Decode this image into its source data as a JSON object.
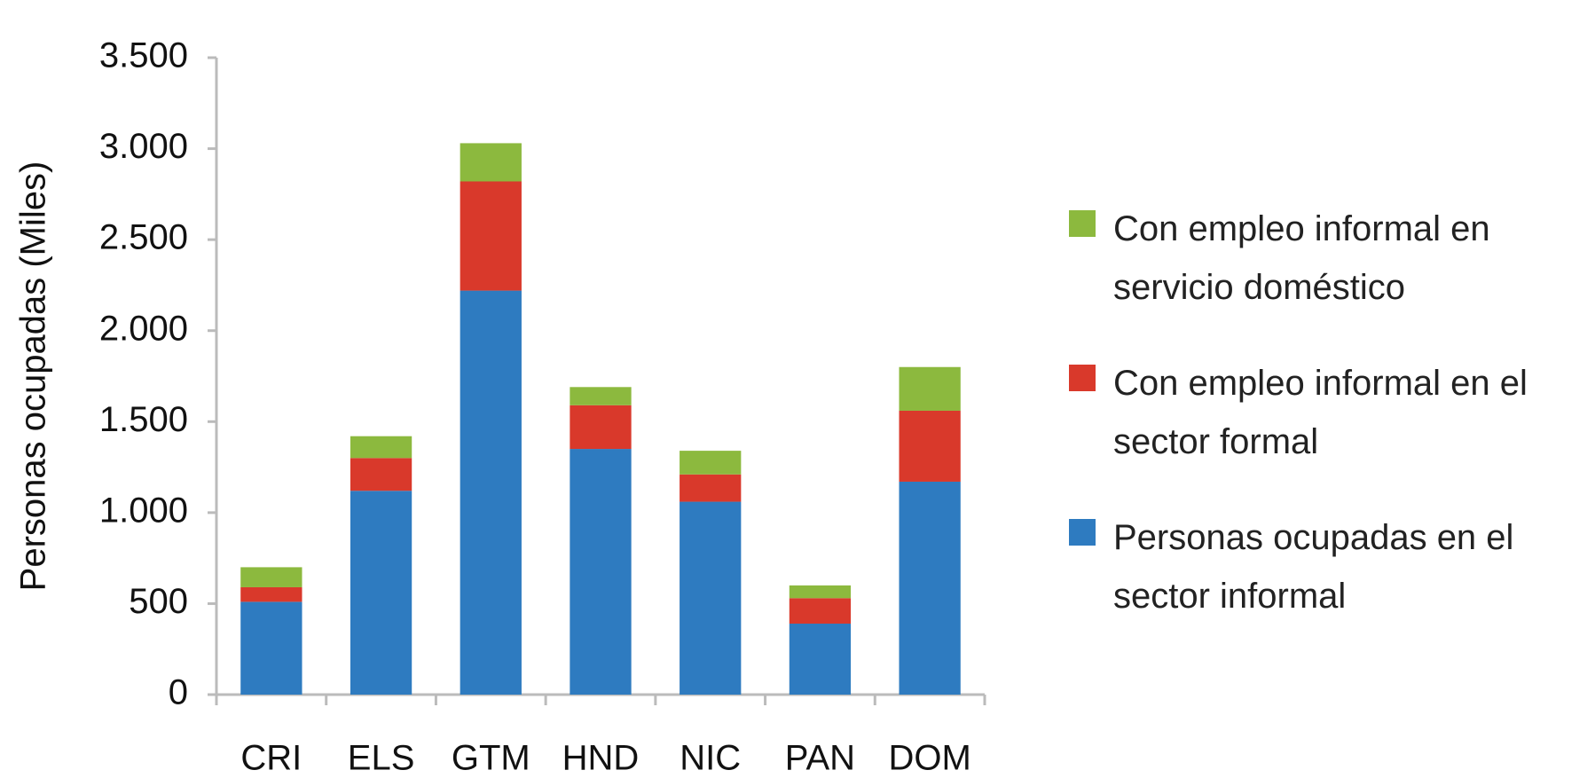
{
  "chart_data": {
    "type": "stacked_bar",
    "y_label": "Personas ocupadas (Miles)",
    "categories": [
      "CRI",
      "ELS",
      "GTM",
      "HND",
      "NIC",
      "PAN",
      "DOM"
    ],
    "series": [
      {
        "name": "Personas ocupadas en el sector informal",
        "color": "#2e7bc0",
        "values": [
          510,
          1120,
          2220,
          1350,
          1060,
          390,
          1170
        ]
      },
      {
        "name": "Con empleo informal en el sector formal",
        "color": "#d9392b",
        "values": [
          80,
          180,
          600,
          240,
          150,
          140,
          390
        ]
      },
      {
        "name": "Con empleo informal en servicio doméstico",
        "color": "#8cb93e",
        "values": [
          110,
          120,
          210,
          100,
          130,
          70,
          240
        ]
      }
    ],
    "ylim": [
      0,
      3500
    ],
    "yticks": [
      0,
      500,
      {
        "value": 1000,
        "label": "1.000"
      },
      {
        "value": 1500,
        "label": "1.500"
      },
      {
        "value": 2000,
        "label": "2.000"
      },
      {
        "value": 2500,
        "label": "2.500"
      },
      {
        "value": 3000,
        "label": "3.000"
      },
      {
        "value": 3500,
        "label": "3.500"
      }
    ],
    "grid": false,
    "legend": "right"
  }
}
